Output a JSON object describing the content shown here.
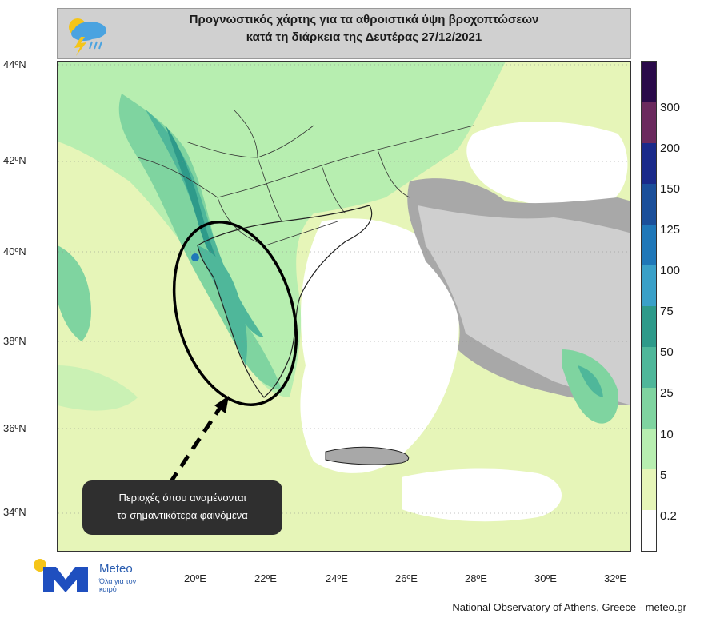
{
  "title": {
    "line1": "Προγνωστικός χάρτης για τα αθροιστικά ύψη βροχοπτώσεων",
    "line2": "κατά τη διάρκεια της Δευτέρας 27/12/2021"
  },
  "latitude_labels": [
    "44ºN",
    "42ºN",
    "40ºN",
    "38ºN",
    "36ºN",
    "34ºN"
  ],
  "longitude_labels": [
    "20ºE",
    "22ºE",
    "24ºE",
    "26ºE",
    "28ºE",
    "30ºE",
    "32ºE"
  ],
  "colorbar": {
    "labels": [
      "300",
      "200",
      "150",
      "125",
      "100",
      "75",
      "50",
      "25",
      "10",
      "5",
      "0.2"
    ],
    "colors": [
      "#2a0a4a",
      "#6b2a5e",
      "#1a2a8a",
      "#1b4f9a",
      "#1f77b8",
      "#3aa0c8",
      "#2e9a8a",
      "#4fb79a",
      "#7fd4a0",
      "#b7eeb0",
      "#e6f5b8",
      "#ffffff"
    ]
  },
  "callout": {
    "line1": "Περιοχές όπου αναμένονται",
    "line2": "τα σημαντικότερα φαινόμενα"
  },
  "branding": {
    "name": "Meteo",
    "slogan": "Όλα για τον καιρό",
    "brand_color": "#1f4fbf",
    "accent_color": "#f5c518"
  },
  "credit": "National Observatory of Athens, Greece - meteo.gr"
}
